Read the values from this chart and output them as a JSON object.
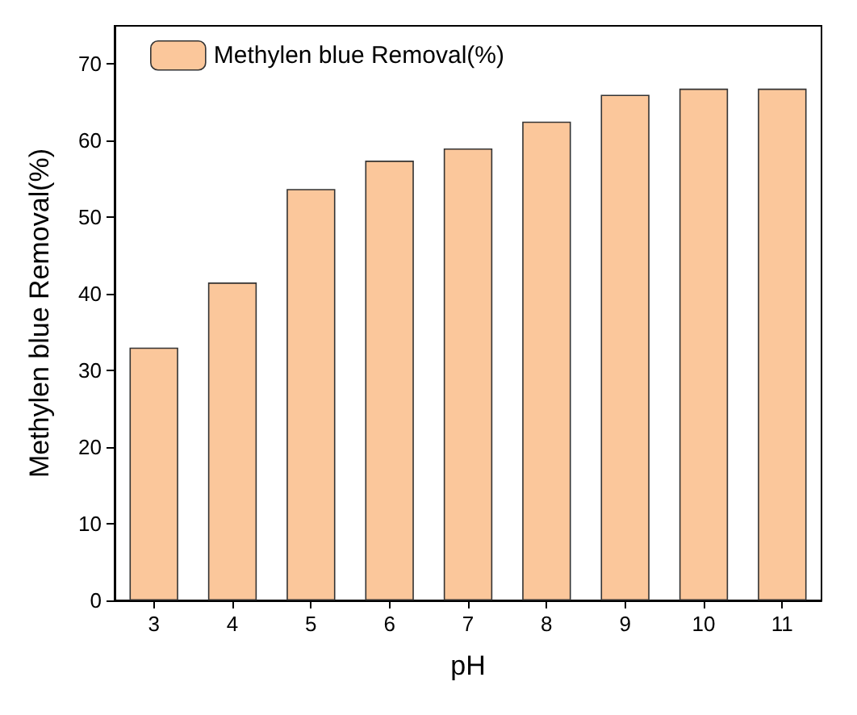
{
  "chart_data": {
    "type": "bar",
    "xlabel": "pH",
    "ylabel": "Methylen blue Removal(%)",
    "categories": [
      "3",
      "4",
      "5",
      "6",
      "7",
      "8",
      "9",
      "10",
      "11"
    ],
    "series": [
      {
        "name": "Methylen blue Removal(%)",
        "color": "#fbc79b",
        "values": [
          33,
          41.5,
          53.7,
          57.4,
          59,
          62.5,
          66,
          66.8,
          66.8
        ]
      }
    ],
    "ylim": [
      0,
      75
    ],
    "yticks": [
      0,
      10,
      20,
      30,
      40,
      50,
      60,
      70
    ],
    "grid": false,
    "legend": "top left"
  }
}
